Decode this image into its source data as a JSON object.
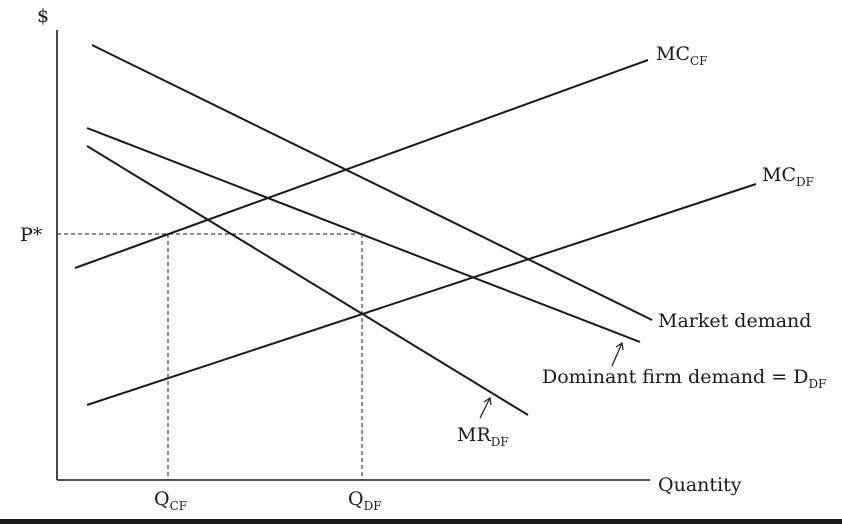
{
  "axes": {
    "y_label": "$",
    "x_label": "Quantity",
    "price_tick": "P*",
    "q_ticks": [
      {
        "main": "Q",
        "sub": "CF"
      },
      {
        "main": "Q",
        "sub": "DF"
      }
    ]
  },
  "curves": {
    "mc_cf": {
      "main": "MC",
      "sub": "CF"
    },
    "mc_df": {
      "main": "MC",
      "sub": "DF"
    },
    "market_demand": "Market demand",
    "dominant_demand": {
      "main": "Dominant firm demand = D",
      "sub": "DF"
    },
    "mr_df": {
      "main": "MR",
      "sub": "DF"
    }
  },
  "colors": {
    "ink": "#1a1a1a",
    "background": "#ffffff"
  }
}
